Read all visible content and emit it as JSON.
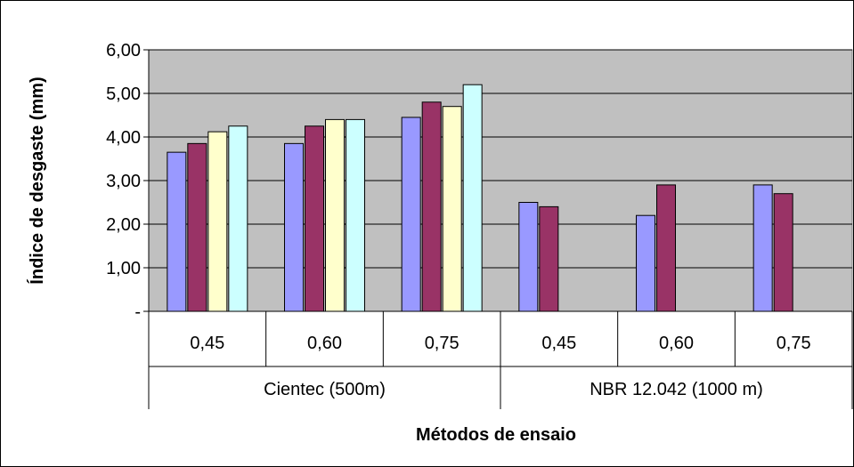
{
  "chart_data": {
    "type": "bar",
    "title": "",
    "xlabel": "Métodos de ensaio",
    "ylabel": "Índice de desgaste (mm)",
    "ylim": [
      0,
      6
    ],
    "yticks": [
      {
        "value": 0,
        "label": "-"
      },
      {
        "value": 1,
        "label": "1,00"
      },
      {
        "value": 2,
        "label": "2,00"
      },
      {
        "value": 3,
        "label": "3,00"
      },
      {
        "value": 4,
        "label": "4,00"
      },
      {
        "value": 5,
        "label": "5,00"
      },
      {
        "value": 6,
        "label": "6,00"
      }
    ],
    "grid": true,
    "legend": "none",
    "categories": [
      "0,45",
      "0,60",
      "0,75",
      "0,45",
      "0,60",
      "0,75"
    ],
    "groups": [
      {
        "label": "Cientec (500m)",
        "categories": [
          0,
          1,
          2
        ]
      },
      {
        "label": "NBR 12.042 (1000 m)",
        "categories": [
          3,
          4,
          5
        ]
      }
    ],
    "plot_background": "#c0c0c0",
    "series": [
      {
        "color": "#9999ff",
        "values": [
          3.65,
          3.85,
          4.45,
          2.5,
          2.2,
          2.9
        ]
      },
      {
        "color": "#993366",
        "values": [
          3.85,
          4.25,
          4.8,
          2.4,
          2.9,
          2.7
        ]
      },
      {
        "color": "#ffffcc",
        "values": [
          4.12,
          4.4,
          4.7,
          null,
          null,
          null
        ]
      },
      {
        "color": "#ccffff",
        "values": [
          4.25,
          4.4,
          5.2,
          null,
          null,
          null
        ]
      }
    ]
  }
}
